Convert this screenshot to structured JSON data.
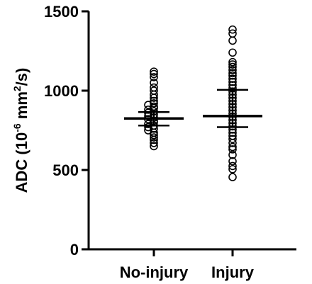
{
  "chart_data": {
    "type": "scatter",
    "title": "",
    "xlabel": "",
    "ylabel": {
      "prefix": "ADC (10",
      "exp1": "-6",
      "middle": " mm",
      "exp2": "2",
      "suffix": "/s)"
    },
    "ylim": [
      0,
      1500
    ],
    "yticks": [
      {
        "value": 0,
        "label": "0"
      },
      {
        "value": 500,
        "label": "500"
      },
      {
        "value": 1000,
        "label": "1000"
      },
      {
        "value": 1500,
        "label": "1500"
      }
    ],
    "categories": [
      "No-injury",
      "Injury"
    ],
    "series": [
      {
        "category": "No-injury",
        "mean": 825,
        "err_low": 780,
        "err_high": 865,
        "points": [
          1120,
          1105,
          1085,
          1050,
          1020,
          1000,
          975,
          955,
          935,
          920,
          910,
          900,
          890,
          880,
          870,
          860,
          850,
          840,
          830,
          820,
          810,
          800,
          790,
          780,
          770,
          760,
          750,
          735,
          720,
          705,
          690,
          670,
          650
        ]
      },
      {
        "category": "Injury",
        "mean": 840,
        "err_low": 770,
        "err_high": 1005,
        "points": [
          1385,
          1360,
          1315,
          1240,
          1180,
          1165,
          1150,
          1130,
          1110,
          1095,
          1075,
          1055,
          1035,
          1015,
          995,
          975,
          955,
          935,
          915,
          895,
          875,
          855,
          835,
          815,
          795,
          775,
          755,
          735,
          715,
          695,
          670,
          645,
          630,
          595,
          555,
          525,
          505,
          455
        ]
      }
    ]
  }
}
